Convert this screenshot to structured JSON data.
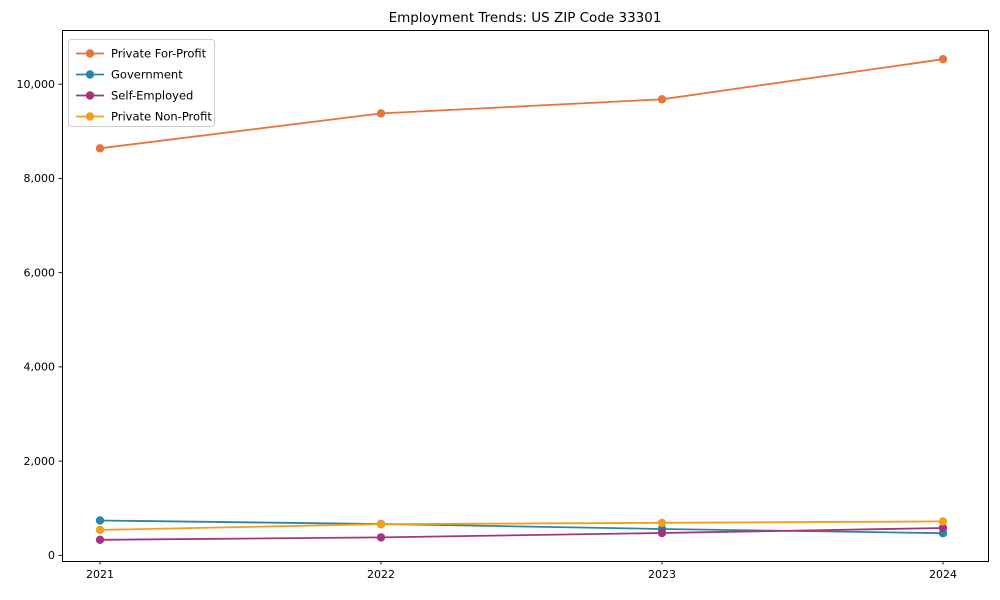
{
  "chart_data": {
    "type": "line",
    "title": "Employment Trends: US ZIP Code 33301",
    "categories": [
      "2021",
      "2022",
      "2023",
      "2024"
    ],
    "series": [
      {
        "name": "Private For-Profit",
        "color": "#e8743b",
        "values": [
          8640,
          9380,
          9680,
          10530
        ]
      },
      {
        "name": "Government",
        "color": "#2a86a8",
        "values": [
          740,
          665,
          560,
          470
        ]
      },
      {
        "name": "Self-Employed",
        "color": "#a23582",
        "values": [
          330,
          380,
          475,
          580
        ]
      },
      {
        "name": "Private Non-Profit",
        "color": "#f0a01e",
        "values": [
          540,
          660,
          690,
          720
        ]
      }
    ],
    "yticks": [
      0,
      2000,
      4000,
      6000,
      8000,
      10000
    ],
    "ytick_labels": [
      "0",
      "2,000",
      "4,000",
      "6,000",
      "8,000",
      "10,000"
    ],
    "ylim": [
      -120,
      11150
    ],
    "grid": false,
    "legend_position": "upper left",
    "marker": "circle",
    "axis_color": "#000000",
    "legend_border_color": "#cccccc",
    "background_color": "#ffffff"
  }
}
